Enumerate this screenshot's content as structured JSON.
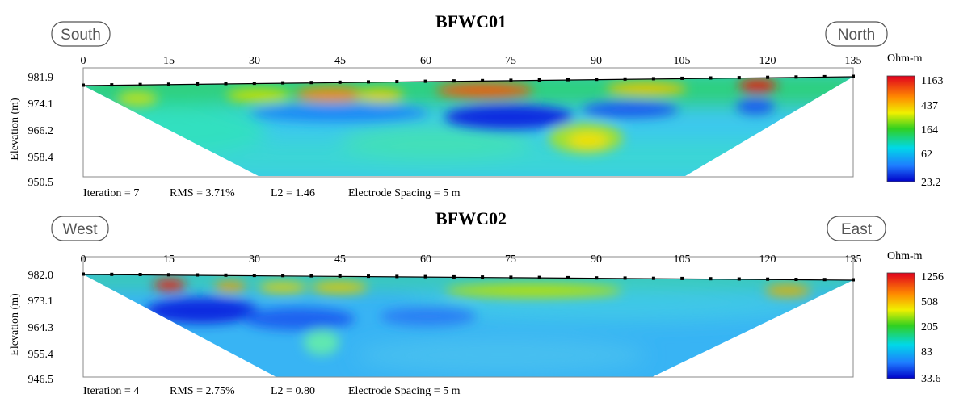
{
  "chart_data": [
    {
      "type": "heatmap",
      "title": "BFWC01",
      "direction_left": "South",
      "direction_right": "North",
      "x_ticks": [
        "0",
        "15",
        "30",
        "45",
        "60",
        "75",
        "90",
        "105",
        "120",
        "135"
      ],
      "xlim": [
        0,
        135
      ],
      "y_ticks": [
        "981.9",
        "974.1",
        "966.2",
        "958.4",
        "950.5"
      ],
      "ylim": [
        950.5,
        981.9
      ],
      "ylabel": "Elevation (m)",
      "footer": {
        "iteration": "Iteration = 7",
        "rms": "RMS = 3.71%",
        "l2": "L2 = 1.46",
        "spacing": "Electrode Spacing = 5 m"
      },
      "colorbar": {
        "unit": "Ohm-m",
        "labels": [
          "1163",
          "437",
          "164",
          "62",
          "23.2"
        ]
      },
      "section_outline_top": [
        [
          0,
          980.5
        ],
        [
          135,
          982.0
        ]
      ],
      "section_bottom": [
        [
          30,
          950.7
        ],
        [
          105,
          950.7
        ]
      ],
      "anomalies": [
        {
          "x": 13,
          "y": 975.5,
          "level": "moderate"
        },
        {
          "x": 43,
          "y": 977.0,
          "level": "high"
        },
        {
          "x": 52,
          "y": 976.5,
          "level": "moderate"
        },
        {
          "x": 70,
          "y": 977.5,
          "level": "high"
        },
        {
          "x": 99,
          "y": 977.5,
          "level": "moderate"
        },
        {
          "x": 118,
          "y": 979.5,
          "level": "high"
        },
        {
          "x": 45,
          "y": 971.0,
          "level": "low"
        },
        {
          "x": 75,
          "y": 969.5,
          "level": "very-low"
        },
        {
          "x": 97,
          "y": 971.5,
          "level": "low"
        },
        {
          "x": 119,
          "y": 973.0,
          "level": "low"
        },
        {
          "x": 88,
          "y": 960.5,
          "level": "moderate"
        }
      ]
    },
    {
      "type": "heatmap",
      "title": "BFWC02",
      "direction_left": "West",
      "direction_right": "East",
      "x_ticks": [
        "0",
        "15",
        "30",
        "45",
        "60",
        "75",
        "90",
        "105",
        "120",
        "135"
      ],
      "xlim": [
        0,
        135
      ],
      "y_ticks": [
        "982.0",
        "973.1",
        "964.3",
        "955.4",
        "946.5"
      ],
      "ylim": [
        946.5,
        982.0
      ],
      "ylabel": "Elevation (m)",
      "footer": {
        "iteration": "Iteration = 4",
        "rms": "RMS = 2.75%",
        "l2": "L2 = 0.80",
        "spacing": "Electrode Spacing = 5 m"
      },
      "colorbar": {
        "unit": "Ohm-m",
        "labels": [
          "1256",
          "508",
          "205",
          "83",
          "33.6"
        ]
      },
      "section_outline_top": [
        [
          0,
          982.0
        ],
        [
          135,
          979.5
        ]
      ],
      "section_bottom": [
        [
          35,
          946.7
        ],
        [
          100,
          946.7
        ]
      ],
      "anomalies": [
        {
          "x": 15,
          "y": 978.5,
          "level": "high"
        },
        {
          "x": 26,
          "y": 978.0,
          "level": "moderate"
        },
        {
          "x": 36,
          "y": 978.0,
          "level": "moderate"
        },
        {
          "x": 45,
          "y": 978.0,
          "level": "moderate"
        },
        {
          "x": 85,
          "y": 977.0,
          "level": "moderate"
        },
        {
          "x": 123,
          "y": 977.0,
          "level": "moderate"
        },
        {
          "x": 23,
          "y": 970.0,
          "level": "very-low"
        },
        {
          "x": 45,
          "y": 968.0,
          "level": "low"
        },
        {
          "x": 42,
          "y": 957.0,
          "level": "moderate"
        }
      ]
    }
  ]
}
